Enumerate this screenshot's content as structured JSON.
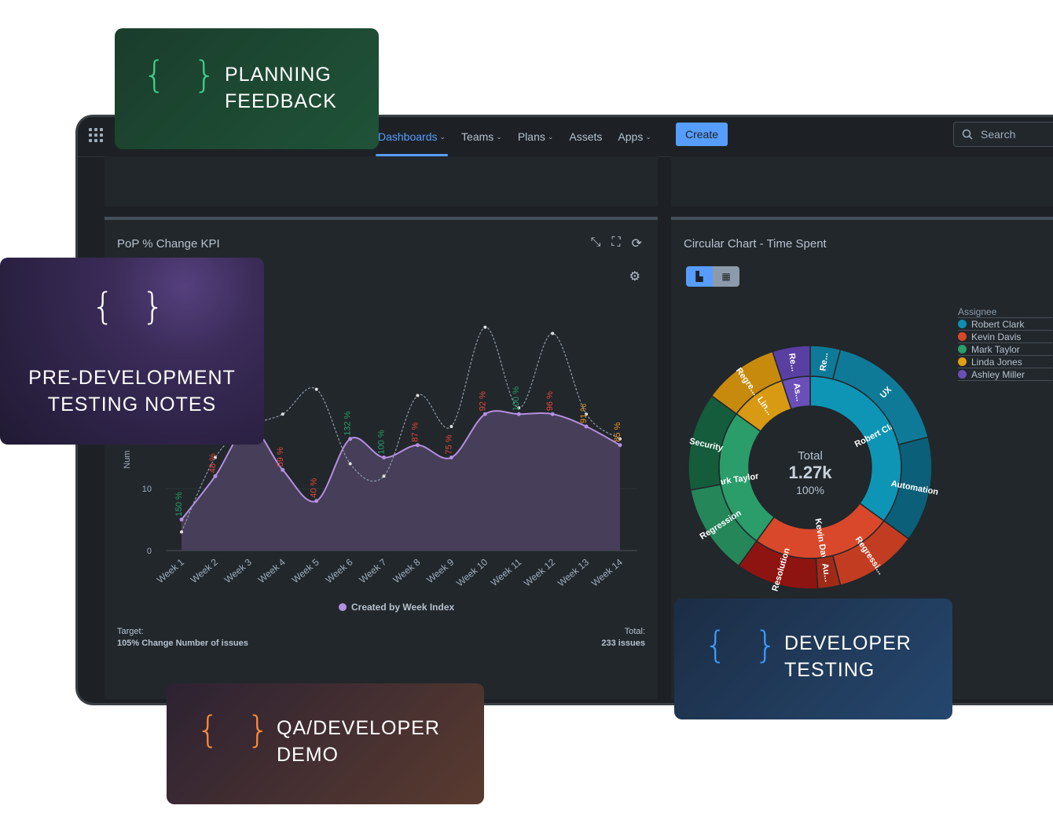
{
  "nav": {
    "items": [
      {
        "label": "Dashboards",
        "active": true,
        "chevron": true
      },
      {
        "label": "Teams",
        "active": false,
        "chevron": true
      },
      {
        "label": "Plans",
        "active": false,
        "chevron": true
      },
      {
        "label": "Assets",
        "active": false,
        "chevron": false
      },
      {
        "label": "Apps",
        "active": false,
        "chevron": true
      }
    ],
    "create_label": "Create",
    "search_placeholder": "Search"
  },
  "kpi_gadget": {
    "title": "PoP % Change KPI",
    "legend": "Created by Week Index",
    "target_label": "Target:",
    "target_value": "105% Change Number of issues",
    "total_label": "Total:",
    "total_value": "233 issues",
    "ylabel_partial": "Num"
  },
  "circular_gadget": {
    "title": "Circular Chart - Time Spent",
    "center_label": "Total",
    "center_value": "1.27k",
    "center_percent": "100%",
    "legend_title": "Assignee"
  },
  "cards": {
    "planning": [
      "PLANNING",
      "FEEDBACK"
    ],
    "pre_dev": [
      "PRE-DEVELOPMENT",
      "TESTING NOTES"
    ],
    "dev_testing": [
      "DEVELOPER",
      "TESTING"
    ],
    "qa_demo": [
      "QA/DEVELOPER",
      "DEMO"
    ],
    "brace_glyph": "{ }"
  },
  "colors": {
    "planning_brace": "#3ecf8e",
    "pre_dev_brace": "#ffffff",
    "dev_brace": "#3d9bff",
    "qa_brace": "#ff8a3d"
  },
  "chart_data": [
    {
      "type": "area",
      "title": "",
      "xlabel": "",
      "ylabel": "Num",
      "ylim": [
        0,
        40
      ],
      "yticks": [
        0,
        10
      ],
      "categories": [
        "Week 1",
        "Week 2",
        "Week 3",
        "Week 4",
        "Week 5",
        "Week 6",
        "Week 7",
        "Week 8",
        "Week 9",
        "Week 10",
        "Week 11",
        "Week 12",
        "Week 13",
        "Week 14"
      ],
      "series": [
        {
          "name": "Created by Week Index",
          "values": [
            5,
            12,
            20,
            13,
            8,
            18,
            15,
            17,
            15,
            22,
            22,
            22,
            20,
            17
          ]
        },
        {
          "name": "",
          "values": [
            3,
            15,
            20,
            22,
            26,
            14,
            12,
            25,
            20,
            36,
            23,
            35,
            22,
            18
          ]
        }
      ],
      "data_labels": [
        {
          "text": "150 %",
          "color": "green"
        },
        {
          "text": "48 %",
          "color": "red"
        },
        {
          "text": "",
          "color": "red"
        },
        {
          "text": "59 %",
          "color": "red"
        },
        {
          "text": "40 %",
          "color": "red"
        },
        {
          "text": "132 %",
          "color": "green"
        },
        {
          "text": "100 %",
          "color": "green"
        },
        {
          "text": "87 %",
          "color": "red"
        },
        {
          "text": "75 %",
          "color": "red"
        },
        {
          "text": "92 %",
          "color": "red"
        },
        {
          "text": "100 %",
          "color": "green"
        },
        {
          "text": "96 %",
          "color": "red"
        },
        {
          "text": "91 %",
          "color": "orange"
        },
        {
          "text": "85 %",
          "color": "orange"
        }
      ]
    },
    {
      "type": "pie",
      "title": "",
      "legend_placement": "right",
      "legend": [
        {
          "name": "Robert Clark",
          "color": "#0e8fb0"
        },
        {
          "name": "Kevin Davis",
          "color": "#d9482b"
        },
        {
          "name": "Mark Taylor",
          "color": "#2a9d6a"
        },
        {
          "name": "Linda Jones",
          "color": "#e0a010"
        },
        {
          "name": "Ashley Miller",
          "color": "#6a4fb8"
        }
      ],
      "inner": [
        {
          "label": "Robert Clark",
          "value": 35,
          "color": "#0e95b5"
        },
        {
          "label": "Kevin Davis",
          "value": 25,
          "color": "#d9482b"
        },
        {
          "label": "Mark Taylor",
          "value": 25,
          "color": "#2a9d6a"
        },
        {
          "label": "Lin...",
          "value": 10,
          "color": "#d89a12"
        },
        {
          "label": "As...",
          "value": 5,
          "color": "#6a4fb8"
        }
      ],
      "outer": [
        {
          "label": "Re...",
          "value": 4,
          "color": "#0e7a98"
        },
        {
          "label": "UX",
          "value": 17,
          "color": "#0e7a98"
        },
        {
          "label": "Automation",
          "value": 14,
          "color": "#0b5f78"
        },
        {
          "label": "Regressi...",
          "value": 11,
          "color": "#c23c22"
        },
        {
          "label": "Au...",
          "value": 3,
          "color": "#a02a18"
        },
        {
          "label": "Resolution",
          "value": 11,
          "color": "#8e1412"
        },
        {
          "label": "Regression",
          "value": 12,
          "color": "#248659"
        },
        {
          "label": "Security",
          "value": 13,
          "color": "#145c3c"
        },
        {
          "label": "Regre...",
          "value": 10,
          "color": "#c78a0d"
        },
        {
          "label": "Re...",
          "value": 5,
          "color": "#5a3fa3"
        }
      ]
    }
  ]
}
